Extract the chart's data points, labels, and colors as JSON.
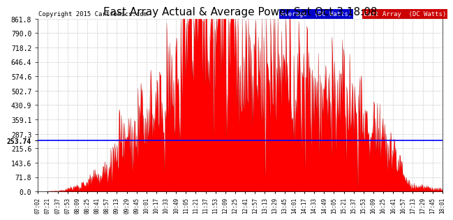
{
  "title": "East Array Actual & Average Power Sat Oct 3 18:08",
  "copyright": "Copyright 2015 Cartronics.com",
  "background_color": "#ffffff",
  "plot_bg_color": "#ffffff",
  "grid_color": "#bbbbbb",
  "average_value": 253.74,
  "average_line_color": "#0000ff",
  "fill_color": "#ff0000",
  "ymax": 861.8,
  "ymin": 0.0,
  "yticks": [
    0.0,
    71.8,
    143.6,
    215.6,
    287.3,
    359.1,
    430.9,
    502.7,
    574.6,
    646.4,
    718.2,
    790.0,
    861.8
  ],
  "legend_average_bg": "#0000cc",
  "legend_east_bg": "#cc0000",
  "legend_average_text": "Average  (DC Watts)",
  "legend_east_text": "East Array  (DC Watts)",
  "x_tick_labels": [
    "07:02",
    "07:21",
    "07:37",
    "07:53",
    "08:09",
    "08:25",
    "08:41",
    "08:57",
    "09:13",
    "09:29",
    "09:45",
    "10:01",
    "10:17",
    "10:33",
    "10:49",
    "11:05",
    "11:21",
    "11:37",
    "11:53",
    "12:09",
    "12:25",
    "12:41",
    "12:57",
    "13:13",
    "13:29",
    "13:45",
    "14:01",
    "14:17",
    "14:33",
    "14:49",
    "15:05",
    "15:21",
    "15:37",
    "15:53",
    "16:09",
    "16:25",
    "16:41",
    "16:57",
    "17:13",
    "17:29",
    "17:45",
    "18:01"
  ]
}
